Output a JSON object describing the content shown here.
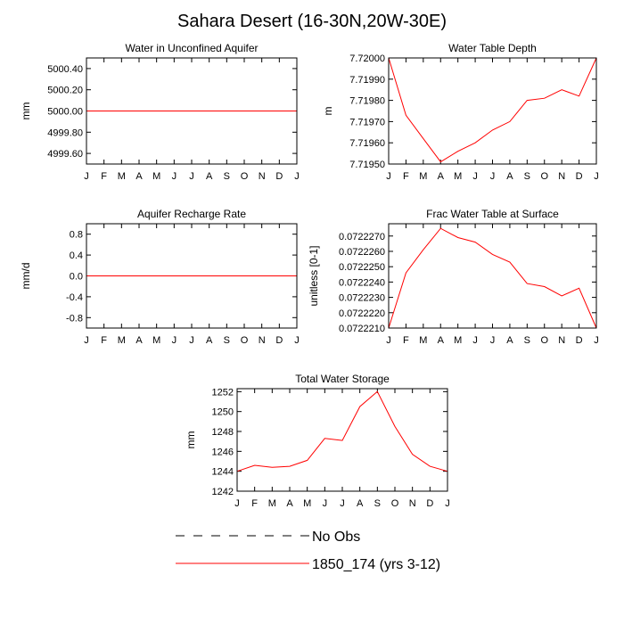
{
  "title": "Sahara Desert (16-30N,20W-30E)",
  "colors": {
    "model": "#ff0000",
    "obs": "#000000",
    "axis": "#000000",
    "background": "#ffffff"
  },
  "legend": {
    "placement": "bottom-center",
    "items": [
      {
        "label": "No Obs",
        "style": "dashed",
        "color": "#000000"
      },
      {
        "label": "1850_174 (yrs 3-12)",
        "style": "solid",
        "color": "#ff0000"
      }
    ]
  },
  "chart_data": [
    {
      "type": "line",
      "title": "Water in Unconfined Aquifer",
      "ylabel": "mm",
      "categories": [
        "J",
        "F",
        "M",
        "A",
        "M",
        "J",
        "J",
        "A",
        "S",
        "O",
        "N",
        "D",
        "J"
      ],
      "ylim": [
        4999.5,
        5000.5
      ],
      "yticks": [
        4999.6,
        4999.8,
        5000.0,
        5000.2,
        5000.4
      ],
      "ytick_labels": [
        "4999.60",
        "4999.80",
        "5000.00",
        "5000.20",
        "5000.40"
      ],
      "series": [
        {
          "name": "1850_174 (yrs 3-12)",
          "color": "#ff0000",
          "values": [
            5000.0,
            5000.0,
            5000.0,
            5000.0,
            5000.0,
            5000.0,
            5000.0,
            5000.0,
            5000.0,
            5000.0,
            5000.0,
            5000.0,
            5000.0
          ]
        }
      ]
    },
    {
      "type": "line",
      "title": "Water Table Depth",
      "ylabel": "m",
      "categories": [
        "J",
        "F",
        "M",
        "A",
        "M",
        "J",
        "J",
        "A",
        "S",
        "O",
        "N",
        "D",
        "J"
      ],
      "ylim": [
        7.7195,
        7.72
      ],
      "yticks": [
        7.7195,
        7.7196,
        7.7197,
        7.7198,
        7.7199,
        7.72
      ],
      "ytick_labels": [
        "7.71950",
        "7.71960",
        "7.71970",
        "7.71980",
        "7.71990",
        "7.72000"
      ],
      "series": [
        {
          "name": "1850_174 (yrs 3-12)",
          "color": "#ff0000",
          "values": [
            7.72,
            7.71973,
            7.71962,
            7.71951,
            7.71956,
            7.7196,
            7.71966,
            7.7197,
            7.7198,
            7.71981,
            7.71985,
            7.71982,
            7.72
          ]
        }
      ]
    },
    {
      "type": "line",
      "title": "Aquifer Recharge Rate",
      "ylabel": "mm/d",
      "categories": [
        "J",
        "F",
        "M",
        "A",
        "M",
        "J",
        "J",
        "A",
        "S",
        "O",
        "N",
        "D",
        "J"
      ],
      "ylim": [
        -1.0,
        1.0
      ],
      "yticks": [
        -0.8,
        -0.4,
        0.0,
        0.4,
        0.8
      ],
      "ytick_labels": [
        "-0.8",
        "-0.4",
        "0.0",
        "0.4",
        "0.8"
      ],
      "series": [
        {
          "name": "1850_174 (yrs 3-12)",
          "color": "#ff0000",
          "values": [
            0,
            0,
            0,
            0,
            0,
            0,
            0,
            0,
            0,
            0,
            0,
            0,
            0
          ]
        }
      ]
    },
    {
      "type": "line",
      "title": "Frac Water Table at Surface",
      "ylabel": "unitless [0-1]",
      "categories": [
        "J",
        "F",
        "M",
        "A",
        "M",
        "J",
        "J",
        "A",
        "S",
        "O",
        "N",
        "D",
        "J"
      ],
      "ylim": [
        0.072221,
        0.0722278
      ],
      "yticks": [
        0.072221,
        0.072222,
        0.072223,
        0.072224,
        0.072225,
        0.072226,
        0.072227
      ],
      "ytick_labels": [
        "0.0722210",
        "0.0722220",
        "0.0722230",
        "0.0722240",
        "0.0722250",
        "0.0722260",
        "0.0722270"
      ],
      "series": [
        {
          "name": "1850_174 (yrs 3-12)",
          "color": "#ff0000",
          "values": [
            0.072221,
            0.0722246,
            0.0722261,
            0.0722275,
            0.0722269,
            0.0722266,
            0.0722258,
            0.0722253,
            0.0722239,
            0.0722237,
            0.0722231,
            0.0722236,
            0.072221
          ]
        }
      ]
    },
    {
      "type": "line",
      "title": "Total Water Storage",
      "ylabel": "mm",
      "categories": [
        "J",
        "F",
        "M",
        "A",
        "M",
        "J",
        "J",
        "A",
        "S",
        "O",
        "N",
        "D",
        "J"
      ],
      "ylim": [
        1242,
        1252.3
      ],
      "yticks": [
        1242,
        1244,
        1246,
        1248,
        1250,
        1252
      ],
      "ytick_labels": [
        "1242",
        "1244",
        "1246",
        "1248",
        "1250",
        "1252"
      ],
      "series": [
        {
          "name": "1850_174 (yrs 3-12)",
          "color": "#ff0000",
          "values": [
            1244.0,
            1244.6,
            1244.4,
            1244.5,
            1245.1,
            1247.3,
            1247.1,
            1250.5,
            1252.0,
            1248.5,
            1245.7,
            1244.5,
            1244.0
          ]
        }
      ]
    }
  ]
}
